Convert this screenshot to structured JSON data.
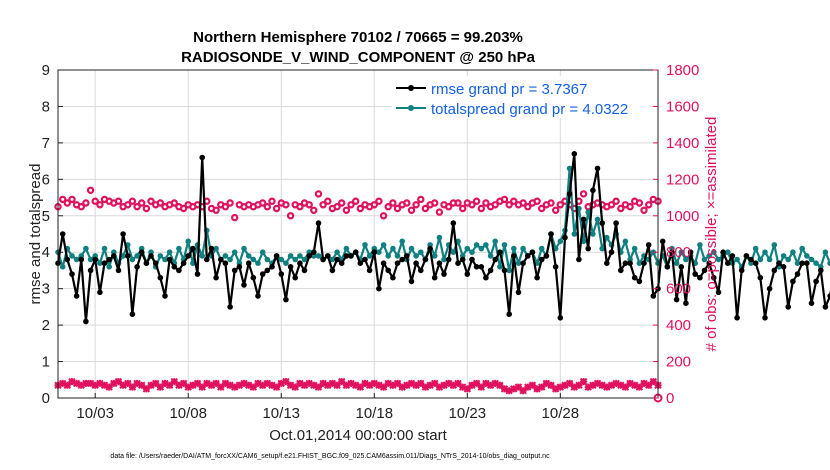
{
  "chart_data": {
    "type": "line",
    "title": "Northern Hemisphere 70102 / 70665 = 99.203%",
    "subtitle": "RADIOSONDE_V_WIND_COMPONENT @ 250 hPa",
    "xlabel": "Oct.01,2014 00:00:00 start",
    "ylabel": "rmse and totalspread",
    "ylabel_right": "# of obs: o=possible; ×=assimilated",
    "xlim": [
      1.0,
      33.25
    ],
    "ylim": [
      0,
      9
    ],
    "ylim_right": [
      0,
      1800
    ],
    "yticks": [
      "0",
      "1",
      "2",
      "3",
      "4",
      "5",
      "6",
      "7",
      "8",
      "9"
    ],
    "yticks_right": [
      "0",
      "200",
      "400",
      "600",
      "800",
      "1000",
      "1200",
      "1400",
      "1600",
      "1800"
    ],
    "xtick_labels": [
      {
        "day": 3,
        "label": "10/03"
      },
      {
        "day": 8,
        "label": "10/08"
      },
      {
        "day": 13,
        "label": "10/13"
      },
      {
        "day": 18,
        "label": "10/18"
      },
      {
        "day": 23,
        "label": "10/23"
      },
      {
        "day": 28,
        "label": "10/28"
      }
    ],
    "grid": true,
    "legend_position": "top-right",
    "legend": [
      "rmse grand pr = 3.7367",
      "totalspread grand pr = 4.0322"
    ],
    "footnote": "data file: /Users/raeder/DAI/ATM_forcXX/CAM6_setup/f.e21.FHIST_BGC.f09_025.CAM6assim.011/Diags_NTrS_2014-10/obs_diag_output.nc",
    "x_start": 1.0,
    "x_step": 0.25,
    "series": [
      {
        "name": "rmse",
        "color": "#000000",
        "values": [
          3.7,
          4.5,
          3.8,
          3.4,
          2.8,
          3.8,
          2.1,
          3.5,
          3.8,
          2.9,
          3.7,
          3.8,
          3.9,
          3.5,
          4.5,
          3.9,
          2.3,
          3.6,
          4.0,
          3.7,
          3.9,
          3.7,
          3.3,
          2.8,
          3.8,
          3.6,
          3.5,
          3.7,
          3.9,
          4.1,
          3.4,
          6.6,
          3.8,
          4.1,
          3.3,
          3.8,
          3.7,
          2.5,
          3.5,
          3.6,
          3.1,
          3.7,
          3.3,
          2.8,
          3.4,
          3.5,
          3.6,
          3.9,
          3.4,
          2.7,
          3.6,
          3.3,
          3.7,
          3.5,
          3.9,
          4.0,
          4.8,
          3.8,
          3.9,
          3.5,
          3.8,
          3.7,
          3.9,
          3.9,
          4.0,
          3.7,
          3.8,
          3.5,
          4.0,
          3.0,
          3.7,
          3.5,
          3.3,
          3.7,
          3.8,
          3.9,
          3.2,
          3.7,
          3.5,
          3.8,
          4.1,
          3.3,
          3.7,
          3.4,
          3.8,
          4.8,
          3.7,
          3.8,
          3.4,
          3.8,
          3.6,
          3.6,
          3.3,
          3.5,
          3.8,
          4.0,
          3.5,
          2.3,
          3.9,
          2.9,
          3.7,
          3.9,
          4.0,
          3.3,
          3.8,
          3.9,
          4.5,
          3.6,
          2.2,
          4.4,
          5.6,
          6.7,
          3.8,
          4.9,
          4.1,
          5.7,
          6.3,
          4.8,
          3.7,
          4.0,
          4.8,
          3.5,
          3.7,
          3.7,
          3.3,
          3.2,
          3.7,
          4.2,
          2.8,
          3.0,
          4.3,
          3.6,
          4.0,
          2.7,
          3.6,
          2.6,
          4.0,
          3.4,
          3.3,
          3.5,
          3.7,
          3.3,
          2.9,
          4.0,
          3.7,
          3.9,
          2.2,
          3.5,
          3.9,
          3.8,
          3.7,
          3.3,
          2.2,
          3.0,
          3.5,
          3.7,
          3.6,
          2.5,
          3.2,
          3.4,
          3.7,
          3.7,
          2.6,
          3.2,
          3.5,
          2.5,
          2.8,
          3.6,
          3.0,
          3.4,
          3.2,
          3.6,
          3.0,
          3.6,
          3.6,
          3.0,
          3.7,
          3.1,
          3.3,
          3.7,
          3.4
        ]
      },
      {
        "name": "totalspread",
        "color": "#108080",
        "values": [
          4.0,
          3.6,
          4.1,
          3.9,
          3.8,
          3.9,
          4.1,
          3.8,
          3.9,
          3.7,
          4.1,
          3.6,
          4.0,
          3.7,
          3.9,
          4.2,
          3.8,
          3.9,
          4.1,
          3.7,
          4.0,
          3.6,
          3.9,
          3.8,
          4.0,
          3.7,
          4.1,
          3.8,
          4.3,
          3.7,
          4.2,
          3.9,
          4.6,
          3.9,
          4.1,
          3.8,
          3.9,
          3.8,
          4.0,
          3.7,
          4.1,
          3.9,
          3.8,
          3.7,
          4.0,
          3.8,
          3.7,
          3.9,
          3.8,
          3.7,
          3.9,
          3.8,
          3.9,
          3.8,
          4.0,
          3.9,
          3.9,
          3.8,
          3.9,
          3.8,
          4.0,
          3.8,
          4.1,
          3.9,
          4.0,
          3.8,
          4.2,
          3.9,
          4.1,
          4.0,
          4.2,
          3.9,
          4.1,
          3.9,
          4.3,
          3.8,
          4.1,
          3.9,
          4.0,
          3.8,
          4.2,
          3.9,
          4.4,
          3.8,
          4.2,
          4.0,
          4.3,
          3.9,
          4.1,
          4.0,
          4.2,
          4.1,
          4.2,
          3.9,
          4.3,
          3.6,
          4.2,
          3.5,
          4.1,
          3.7,
          4.1,
          3.9,
          4.0,
          3.7,
          4.1,
          3.9,
          4.5,
          4.1,
          4.3,
          4.6,
          6.3,
          4.5,
          5.2,
          4.3,
          5.1,
          4.5,
          4.9,
          4.1,
          4.4,
          4.2,
          4.5,
          4.0,
          4.3,
          3.8,
          4.1,
          3.7,
          3.9,
          3.8,
          4.0,
          3.7,
          3.9,
          3.6,
          4.1,
          3.7,
          4.0,
          3.8,
          3.9,
          3.7,
          4.2,
          3.8,
          3.9,
          4.0,
          3.8,
          3.9,
          4.0,
          3.7,
          3.8,
          3.6,
          3.9,
          3.7,
          4.1,
          3.8,
          4.0,
          3.8,
          4.2,
          3.6,
          3.9,
          3.8,
          4.0,
          3.7,
          4.1,
          3.9,
          3.8,
          3.7,
          3.6,
          4.0,
          3.7,
          3.6,
          3.8,
          3.7,
          4.0,
          3.7,
          3.8,
          3.6,
          3.7,
          3.8,
          3.7,
          3.8,
          3.7,
          3.8,
          3.8
        ]
      },
      {
        "name": "obs possible",
        "axis": "right",
        "color": "#e0115f",
        "marker": "o",
        "values": [
          1050,
          1090,
          1070,
          1090,
          1060,
          1050,
          1070,
          1140,
          1080,
          1060,
          1090,
          1080,
          1070,
          1080,
          1050,
          1060,
          1080,
          1050,
          1070,
          1040,
          1080,
          1060,
          1070,
          1050,
          1060,
          1070,
          1050,
          1040,
          1060,
          1050,
          1060,
          1050,
          1080,
          1040,
          1030,
          1060,
          1050,
          1070,
          990,
          1060,
          1050,
          1060,
          1050,
          1060,
          1070,
          1050,
          1080,
          1040,
          1070,
          1060,
          1000,
          1060,
          1050,
          1070,
          1060,
          1030,
          1120,
          1060,
          1080,
          1040,
          1050,
          1070,
          1030,
          1060,
          1080,
          1040,
          1060,
          1050,
          1060,
          1080,
          1000,
          1050,
          1070,
          1040,
          1060,
          1070,
          1030,
          1060,
          1090,
          1040,
          1060,
          1070,
          1020,
          1060,
          1050,
          1070,
          1070,
          1040,
          1070,
          1060,
          1080,
          1040,
          1070,
          1050,
          1060,
          1080,
          1090,
          1060,
          1080,
          1060,
          1070,
          1050,
          1070,
          1080,
          1040,
          1060,
          1070,
          1030,
          1060,
          1080,
          1060,
          1040,
          1080,
          1120,
          1050,
          1060,
          1070,
          1060,
          1050,
          1060,
          1080,
          1040,
          1060,
          1050,
          1080,
          1070,
          1030,
          1060,
          1090,
          1080,
          1060,
          1040,
          1070,
          1060,
          1090,
          1060,
          1040,
          1050,
          1020,
          1060,
          1080,
          1000,
          1050,
          1080,
          1060,
          1070,
          1090,
          1020,
          1040,
          1060,
          1050,
          1080,
          1030,
          1050,
          1040,
          1050,
          1040,
          1010,
          1020,
          1040,
          1050,
          1030,
          1050,
          1030,
          1040,
          1050,
          1040,
          1050,
          1080,
          1030,
          1060,
          1040,
          1060,
          1040,
          1110,
          1040,
          1050,
          1060,
          1080,
          1040,
          1050
        ]
      },
      {
        "name": "obs assimilated",
        "axis": "right",
        "color": "#e0115f",
        "marker": "x",
        "values": [
          70,
          80,
          70,
          90,
          80,
          70,
          80,
          80,
          70,
          80,
          70,
          60,
          80,
          90,
          70,
          80,
          60,
          80,
          70,
          50,
          70,
          80,
          60,
          80,
          70,
          90,
          70,
          80,
          60,
          70,
          80,
          60,
          80,
          70,
          80,
          60,
          80,
          70,
          60,
          70,
          80,
          70,
          60,
          80,
          70,
          80,
          70,
          60,
          80,
          90,
          70,
          60,
          80,
          70,
          80,
          70,
          60,
          80,
          70,
          80,
          70,
          90,
          70,
          80,
          70,
          60,
          80,
          70,
          80,
          70,
          60,
          80,
          70,
          80,
          60,
          70,
          80,
          70,
          80,
          60,
          70,
          80,
          60,
          70,
          80,
          70,
          80,
          60,
          50,
          70,
          80,
          60,
          80,
          70,
          80,
          70,
          50,
          40,
          50,
          60,
          40,
          60,
          70,
          50,
          60,
          80,
          70,
          50,
          60,
          70,
          80,
          60,
          70,
          90,
          60,
          70,
          80,
          70,
          60,
          70,
          80,
          70,
          60,
          80,
          70,
          60,
          80,
          70,
          90,
          70,
          60,
          80,
          70,
          80,
          60,
          70,
          80,
          70,
          80,
          70,
          60,
          80,
          70,
          60,
          80,
          70,
          60,
          70,
          80,
          60,
          70,
          80,
          60,
          70,
          80,
          70,
          60,
          80,
          70,
          80,
          60,
          80,
          70,
          90,
          70,
          80,
          70,
          60,
          100,
          70,
          60,
          80,
          70,
          80,
          70,
          60,
          50,
          70,
          60,
          70,
          50,
          40
        ]
      }
    ]
  }
}
